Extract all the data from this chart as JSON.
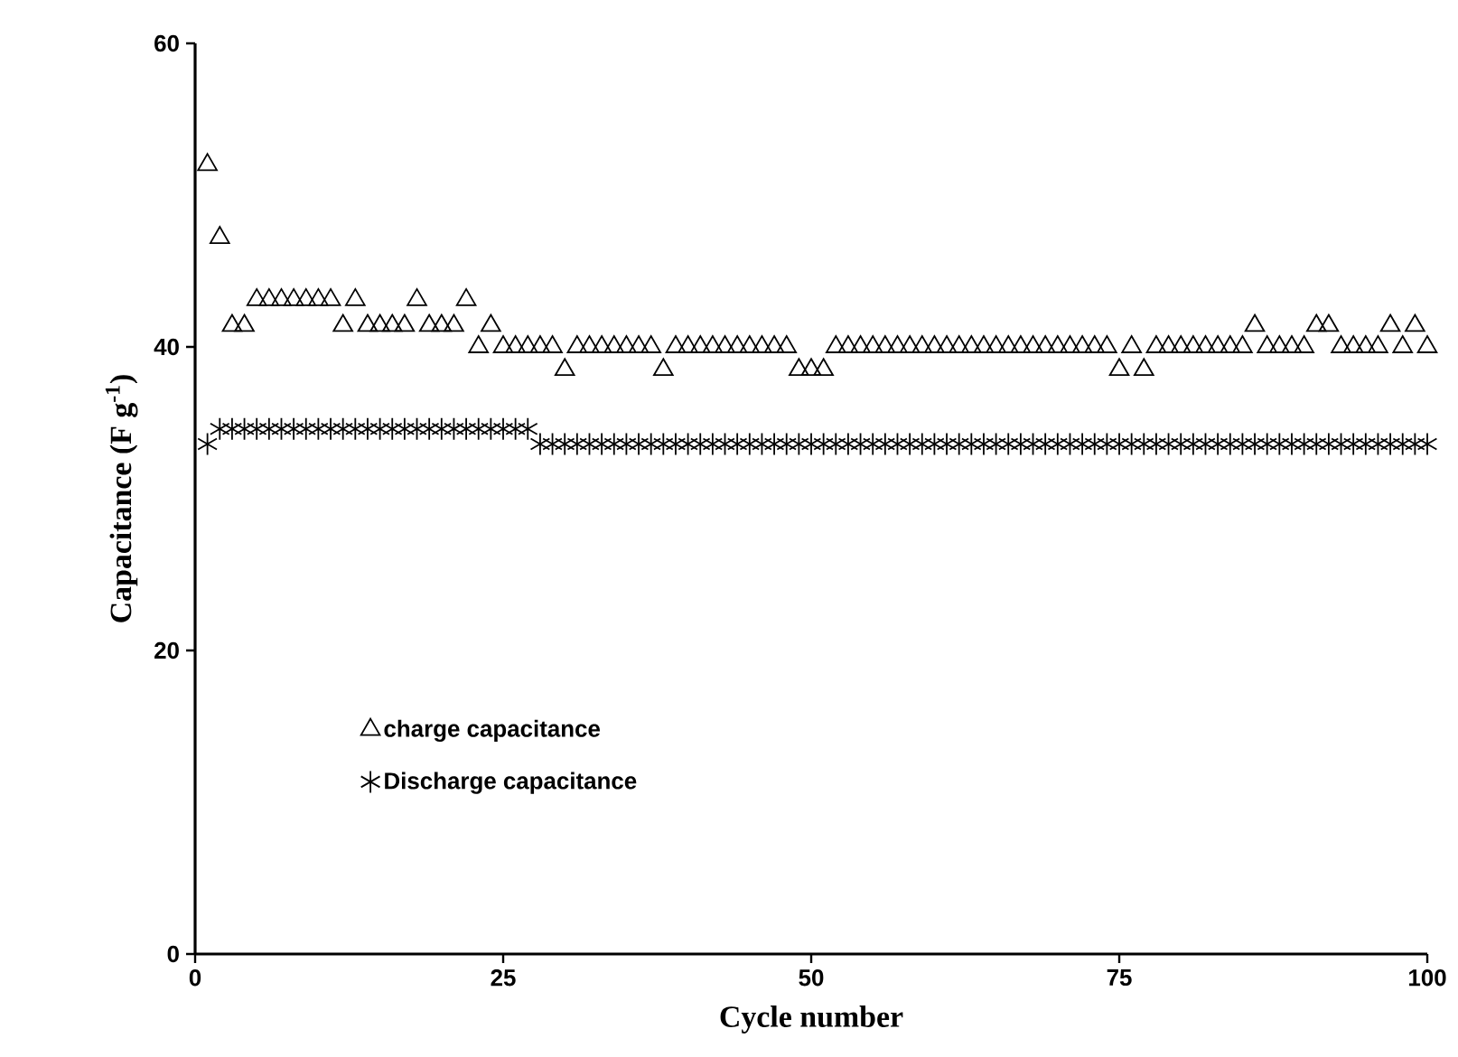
{
  "chart_data": {
    "type": "scatter",
    "xlabel": "Cycle number",
    "ylabel": "Capacitance (F g$^{-1}$)",
    "xlim": [
      0,
      100
    ],
    "ylim": [
      0,
      60
    ],
    "xticks": [
      0,
      25,
      50,
      75,
      100
    ],
    "yticks": [
      0,
      20,
      40,
      60
    ],
    "grid": false,
    "legend": "bottom left",
    "x": [
      1,
      2,
      3,
      4,
      5,
      6,
      7,
      8,
      9,
      10,
      11,
      12,
      13,
      14,
      15,
      16,
      17,
      18,
      19,
      20,
      21,
      22,
      23,
      24,
      25,
      26,
      27,
      28,
      29,
      30,
      31,
      32,
      33,
      34,
      35,
      36,
      37,
      38,
      39,
      40,
      41,
      42,
      43,
      44,
      45,
      46,
      47,
      48,
      49,
      50,
      51,
      52,
      53,
      54,
      55,
      56,
      57,
      58,
      59,
      60,
      61,
      62,
      63,
      64,
      65,
      66,
      67,
      68,
      69,
      70,
      71,
      72,
      73,
      74,
      75,
      76,
      77,
      78,
      79,
      80,
      81,
      82,
      83,
      84,
      85,
      86,
      87,
      88,
      89,
      90,
      91,
      92,
      93,
      94,
      95,
      96,
      97,
      98,
      99,
      100
    ],
    "series": [
      {
        "name": "charge capacitance",
        "color": "#000000",
        "marker": "triangle",
        "values": [
          52,
          47.2,
          41.4,
          41.4,
          43.1,
          43.1,
          43.1,
          43.1,
          43.1,
          43.1,
          43.1,
          41.4,
          43.1,
          41.4,
          41.4,
          41.4,
          41.4,
          43.1,
          41.4,
          41.4,
          41.4,
          43.1,
          40,
          41.4,
          40,
          40,
          40,
          40,
          40,
          38.5,
          40,
          40,
          40,
          40,
          40,
          40,
          40,
          38.5,
          40,
          40,
          40,
          40,
          40,
          40,
          40,
          40,
          40,
          40,
          38.5,
          38.5,
          38.5,
          40,
          40,
          40,
          40,
          40,
          40,
          40,
          40,
          40,
          40,
          40,
          40,
          40,
          40,
          40,
          40,
          40,
          40,
          40,
          40,
          40,
          40,
          40,
          38.5,
          40,
          38.5,
          40,
          40,
          40,
          40,
          40,
          40,
          40,
          40,
          41.4,
          40,
          40,
          40,
          40,
          41.4,
          41.4,
          40,
          40,
          40,
          40,
          41.4,
          40,
          41.4,
          40
        ]
      },
      {
        "name": "Discharge capacitance",
        "color": "#000000",
        "marker": "cross",
        "values": [
          33.6,
          34.6,
          34.6,
          34.6,
          34.6,
          34.6,
          34.6,
          34.6,
          34.6,
          34.6,
          34.6,
          34.6,
          34.6,
          34.6,
          34.6,
          34.6,
          34.6,
          34.6,
          34.6,
          34.6,
          34.6,
          34.6,
          34.6,
          34.6,
          34.6,
          34.6,
          34.6,
          33.6,
          33.6,
          33.6,
          33.6,
          33.6,
          33.6,
          33.6,
          33.6,
          33.6,
          33.6,
          33.6,
          33.6,
          33.6,
          33.6,
          33.6,
          33.6,
          33.6,
          33.6,
          33.6,
          33.6,
          33.6,
          33.6,
          33.6,
          33.6,
          33.6,
          33.6,
          33.6,
          33.6,
          33.6,
          33.6,
          33.6,
          33.6,
          33.6,
          33.6,
          33.6,
          33.6,
          33.6,
          33.6,
          33.6,
          33.6,
          33.6,
          33.6,
          33.6,
          33.6,
          33.6,
          33.6,
          33.6,
          33.6,
          33.6,
          33.6,
          33.6,
          33.6,
          33.6,
          33.6,
          33.6,
          33.6,
          33.6,
          33.6,
          33.6,
          33.6,
          33.6,
          33.6,
          33.6,
          33.6,
          33.6,
          33.6,
          33.6,
          33.6,
          33.6,
          33.6,
          33.6,
          33.6,
          33.6
        ]
      }
    ]
  }
}
